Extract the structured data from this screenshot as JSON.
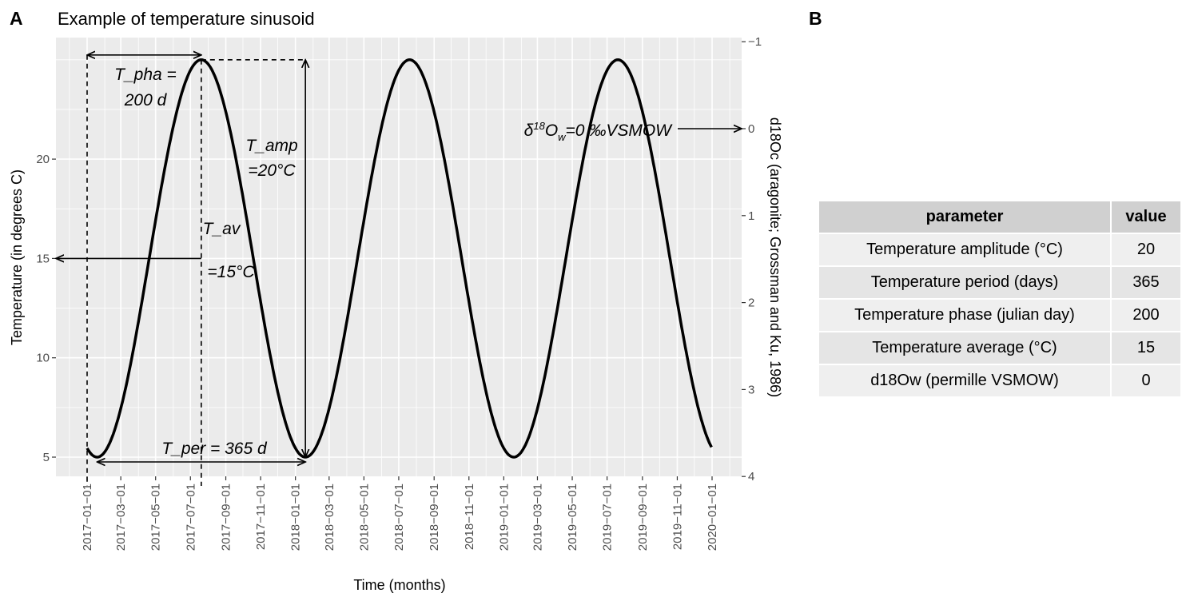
{
  "panel_labels": {
    "a": "A",
    "b": "B"
  },
  "chart_data": {
    "type": "line",
    "title": "Example of temperature sinusoid",
    "xlabel": "Time (months)",
    "ylabel": "Temperature (in degrees C)",
    "ylabel_right": "d18Oc (aragonite; Grossman and Ku, 1986)",
    "x_range": [
      "2017-01-01",
      "2020-01-01"
    ],
    "xlim": [
      "2016-11-05",
      "2020-02-15"
    ],
    "ylim": [
      4.0,
      26.0
    ],
    "ylim_right": [
      4.0,
      -1.0
    ],
    "grid": true,
    "x_ticks": [
      "2017-01-01",
      "2017-03-01",
      "2017-05-01",
      "2017-07-01",
      "2017-09-01",
      "2017-11-01",
      "2018-01-01",
      "2018-03-01",
      "2018-05-01",
      "2018-07-01",
      "2018-09-01",
      "2018-11-01",
      "2019-01-01",
      "2019-03-01",
      "2019-05-01",
      "2019-07-01",
      "2019-09-01",
      "2019-11-01",
      "2020-01-01"
    ],
    "y_ticks": [
      5,
      10,
      15,
      20
    ],
    "y_ticks_right": [
      "-1",
      "0",
      "1",
      "2",
      "3",
      "4"
    ],
    "y_ticks_right_values": [
      -1,
      0,
      1,
      2,
      3,
      4
    ],
    "series": [
      {
        "model": "sinusoid",
        "amplitude": 20,
        "period_days": 365,
        "phase_day": 200,
        "average": 15,
        "color": "#000000"
      }
    ],
    "annotations": {
      "pha_1": "T_pha =",
      "pha_2": "200 d",
      "amp_1": "T_amp",
      "amp_2": "=20°C",
      "av_1": "T_av",
      "av_2": "=15°C",
      "per": "T_per = 365 d",
      "d18ow_delta": "δ",
      "d18ow_sup": "18",
      "d18ow_o": "O",
      "d18ow_sub": "w",
      "d18ow_rest": "=0 ‰VSMOW"
    },
    "colors": {
      "panel": "#ebebeb",
      "grid": "#ffffff",
      "line": "#000000"
    }
  },
  "table": {
    "headers": [
      "parameter",
      "value"
    ],
    "rows": [
      [
        "Temperature amplitude (°C)",
        "20"
      ],
      [
        "Temperature period (days)",
        "365"
      ],
      [
        "Temperature phase (julian day)",
        "200"
      ],
      [
        "Temperature average (°C)",
        "15"
      ],
      [
        "d18Ow (permille VSMOW)",
        "0"
      ]
    ]
  }
}
